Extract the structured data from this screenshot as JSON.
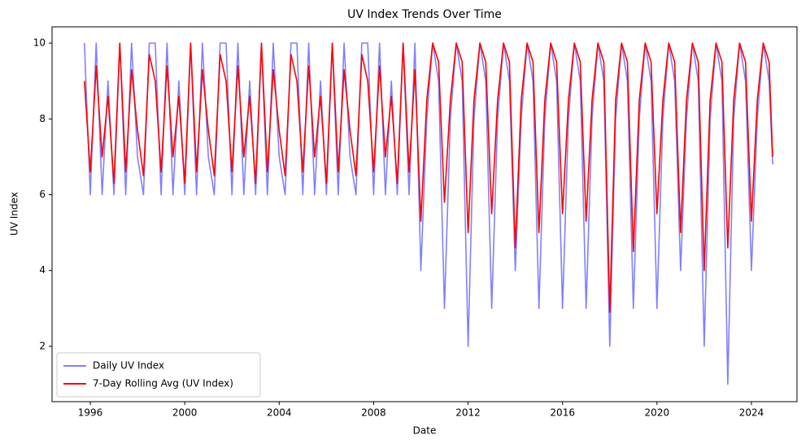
{
  "chart_data": {
    "type": "line",
    "title": "UV Index Trends Over Time",
    "xlabel": "Date",
    "ylabel": "UV Index",
    "x": [
      1995.75,
      1996,
      1996.25,
      1996.5,
      1996.75,
      1997,
      1997.25,
      1997.5,
      1997.75,
      1998,
      1998.25,
      1998.5,
      1998.75,
      1999,
      1999.25,
      1999.5,
      1999.75,
      2000,
      2000.25,
      2000.5,
      2000.75,
      2001,
      2001.25,
      2001.5,
      2001.75,
      2002,
      2002.25,
      2002.5,
      2002.75,
      2003,
      2003.25,
      2003.5,
      2003.75,
      2004,
      2004.25,
      2004.5,
      2004.75,
      2005,
      2005.25,
      2005.5,
      2005.75,
      2006,
      2006.25,
      2006.5,
      2006.75,
      2007,
      2007.25,
      2007.5,
      2007.75,
      2008,
      2008.25,
      2008.5,
      2008.75,
      2009,
      2009.25,
      2009.5,
      2009.75,
      2010,
      2010.25,
      2010.5,
      2010.75,
      2011,
      2011.25,
      2011.5,
      2011.75,
      2012,
      2012.25,
      2012.5,
      2012.75,
      2013,
      2013.25,
      2013.5,
      2013.75,
      2014,
      2014.25,
      2014.5,
      2014.75,
      2015,
      2015.25,
      2015.5,
      2015.75,
      2016,
      2016.25,
      2016.5,
      2016.75,
      2017,
      2017.25,
      2017.5,
      2017.75,
      2018,
      2018.25,
      2018.5,
      2018.75,
      2019,
      2019.25,
      2019.5,
      2019.75,
      2020,
      2020.25,
      2020.5,
      2020.75,
      2021,
      2021.25,
      2021.5,
      2021.75,
      2022,
      2022.25,
      2022.5,
      2022.75,
      2023,
      2023.25,
      2023.5,
      2023.75,
      2024,
      2024.25,
      2024.5,
      2024.75,
      2024.9
    ],
    "series": [
      {
        "name": "Daily UV Index",
        "color": "#8080ff",
        "values": [
          10,
          6,
          10,
          6,
          9,
          6,
          10,
          6,
          10,
          7,
          6,
          10,
          10,
          6,
          10,
          6,
          9,
          6,
          10,
          6,
          10,
          7,
          6,
          10,
          10,
          6,
          10,
          6,
          9,
          6,
          10,
          6,
          10,
          7,
          6,
          10,
          10,
          6,
          10,
          6,
          9,
          6,
          10,
          6,
          10,
          7,
          6,
          10,
          10,
          6,
          10,
          6,
          9,
          6,
          10,
          6,
          10,
          4,
          8,
          10,
          9,
          3,
          8,
          10,
          9,
          2,
          8,
          10,
          9,
          3,
          8,
          10,
          9,
          4,
          8,
          10,
          9,
          3,
          8,
          10,
          9,
          3,
          8,
          10,
          9,
          3,
          8,
          10,
          9,
          2,
          8,
          10,
          9,
          3,
          8,
          10,
          9,
          3,
          8,
          10,
          9,
          4,
          8,
          10,
          9,
          2,
          8,
          10,
          9,
          1,
          8,
          10,
          9,
          4,
          8,
          10,
          9,
          6.8
        ]
      },
      {
        "name": "7-Day Rolling Avg (UV Index)",
        "color": "#ff0000",
        "values": [
          9,
          6.6,
          9.4,
          7,
          8.6,
          6.3,
          10,
          6.6,
          9.3,
          7.7,
          6.5,
          9.7,
          9,
          6.6,
          9.4,
          7,
          8.6,
          6.3,
          10,
          6.6,
          9.3,
          7.7,
          6.5,
          9.7,
          9,
          6.6,
          9.4,
          7,
          8.6,
          6.3,
          10,
          6.6,
          9.3,
          7.7,
          6.5,
          9.7,
          9,
          6.6,
          9.4,
          7,
          8.6,
          6.3,
          10,
          6.6,
          9.3,
          7.7,
          6.5,
          9.7,
          9,
          6.6,
          9.4,
          7,
          8.6,
          6.3,
          10,
          6.6,
          9.3,
          5.3,
          8.5,
          10,
          9.5,
          5.8,
          8.5,
          10,
          9.5,
          5,
          8.5,
          10,
          9.5,
          5.5,
          8.5,
          10,
          9.5,
          4.6,
          8.5,
          10,
          9.5,
          5,
          8.5,
          10,
          9.5,
          5.5,
          8.5,
          10,
          9.5,
          5.3,
          8.5,
          10,
          9.5,
          2.9,
          8.5,
          10,
          9.5,
          4.5,
          8.5,
          10,
          9.5,
          5.5,
          8.5,
          10,
          9.5,
          5,
          8.5,
          10,
          9.5,
          4,
          8.5,
          10,
          9.5,
          4.6,
          8.5,
          10,
          9.5,
          5.3,
          8.5,
          10,
          9.5,
          7
        ]
      }
    ],
    "xlim": [
      1994.38,
      2025.93
    ],
    "xticks": [
      1996,
      2000,
      2004,
      2008,
      2012,
      2016,
      2020,
      2024
    ],
    "ylim": [
      0.54,
      10.43
    ],
    "yticks": [
      2,
      4,
      6,
      8,
      10
    ],
    "legend": "lower left"
  }
}
